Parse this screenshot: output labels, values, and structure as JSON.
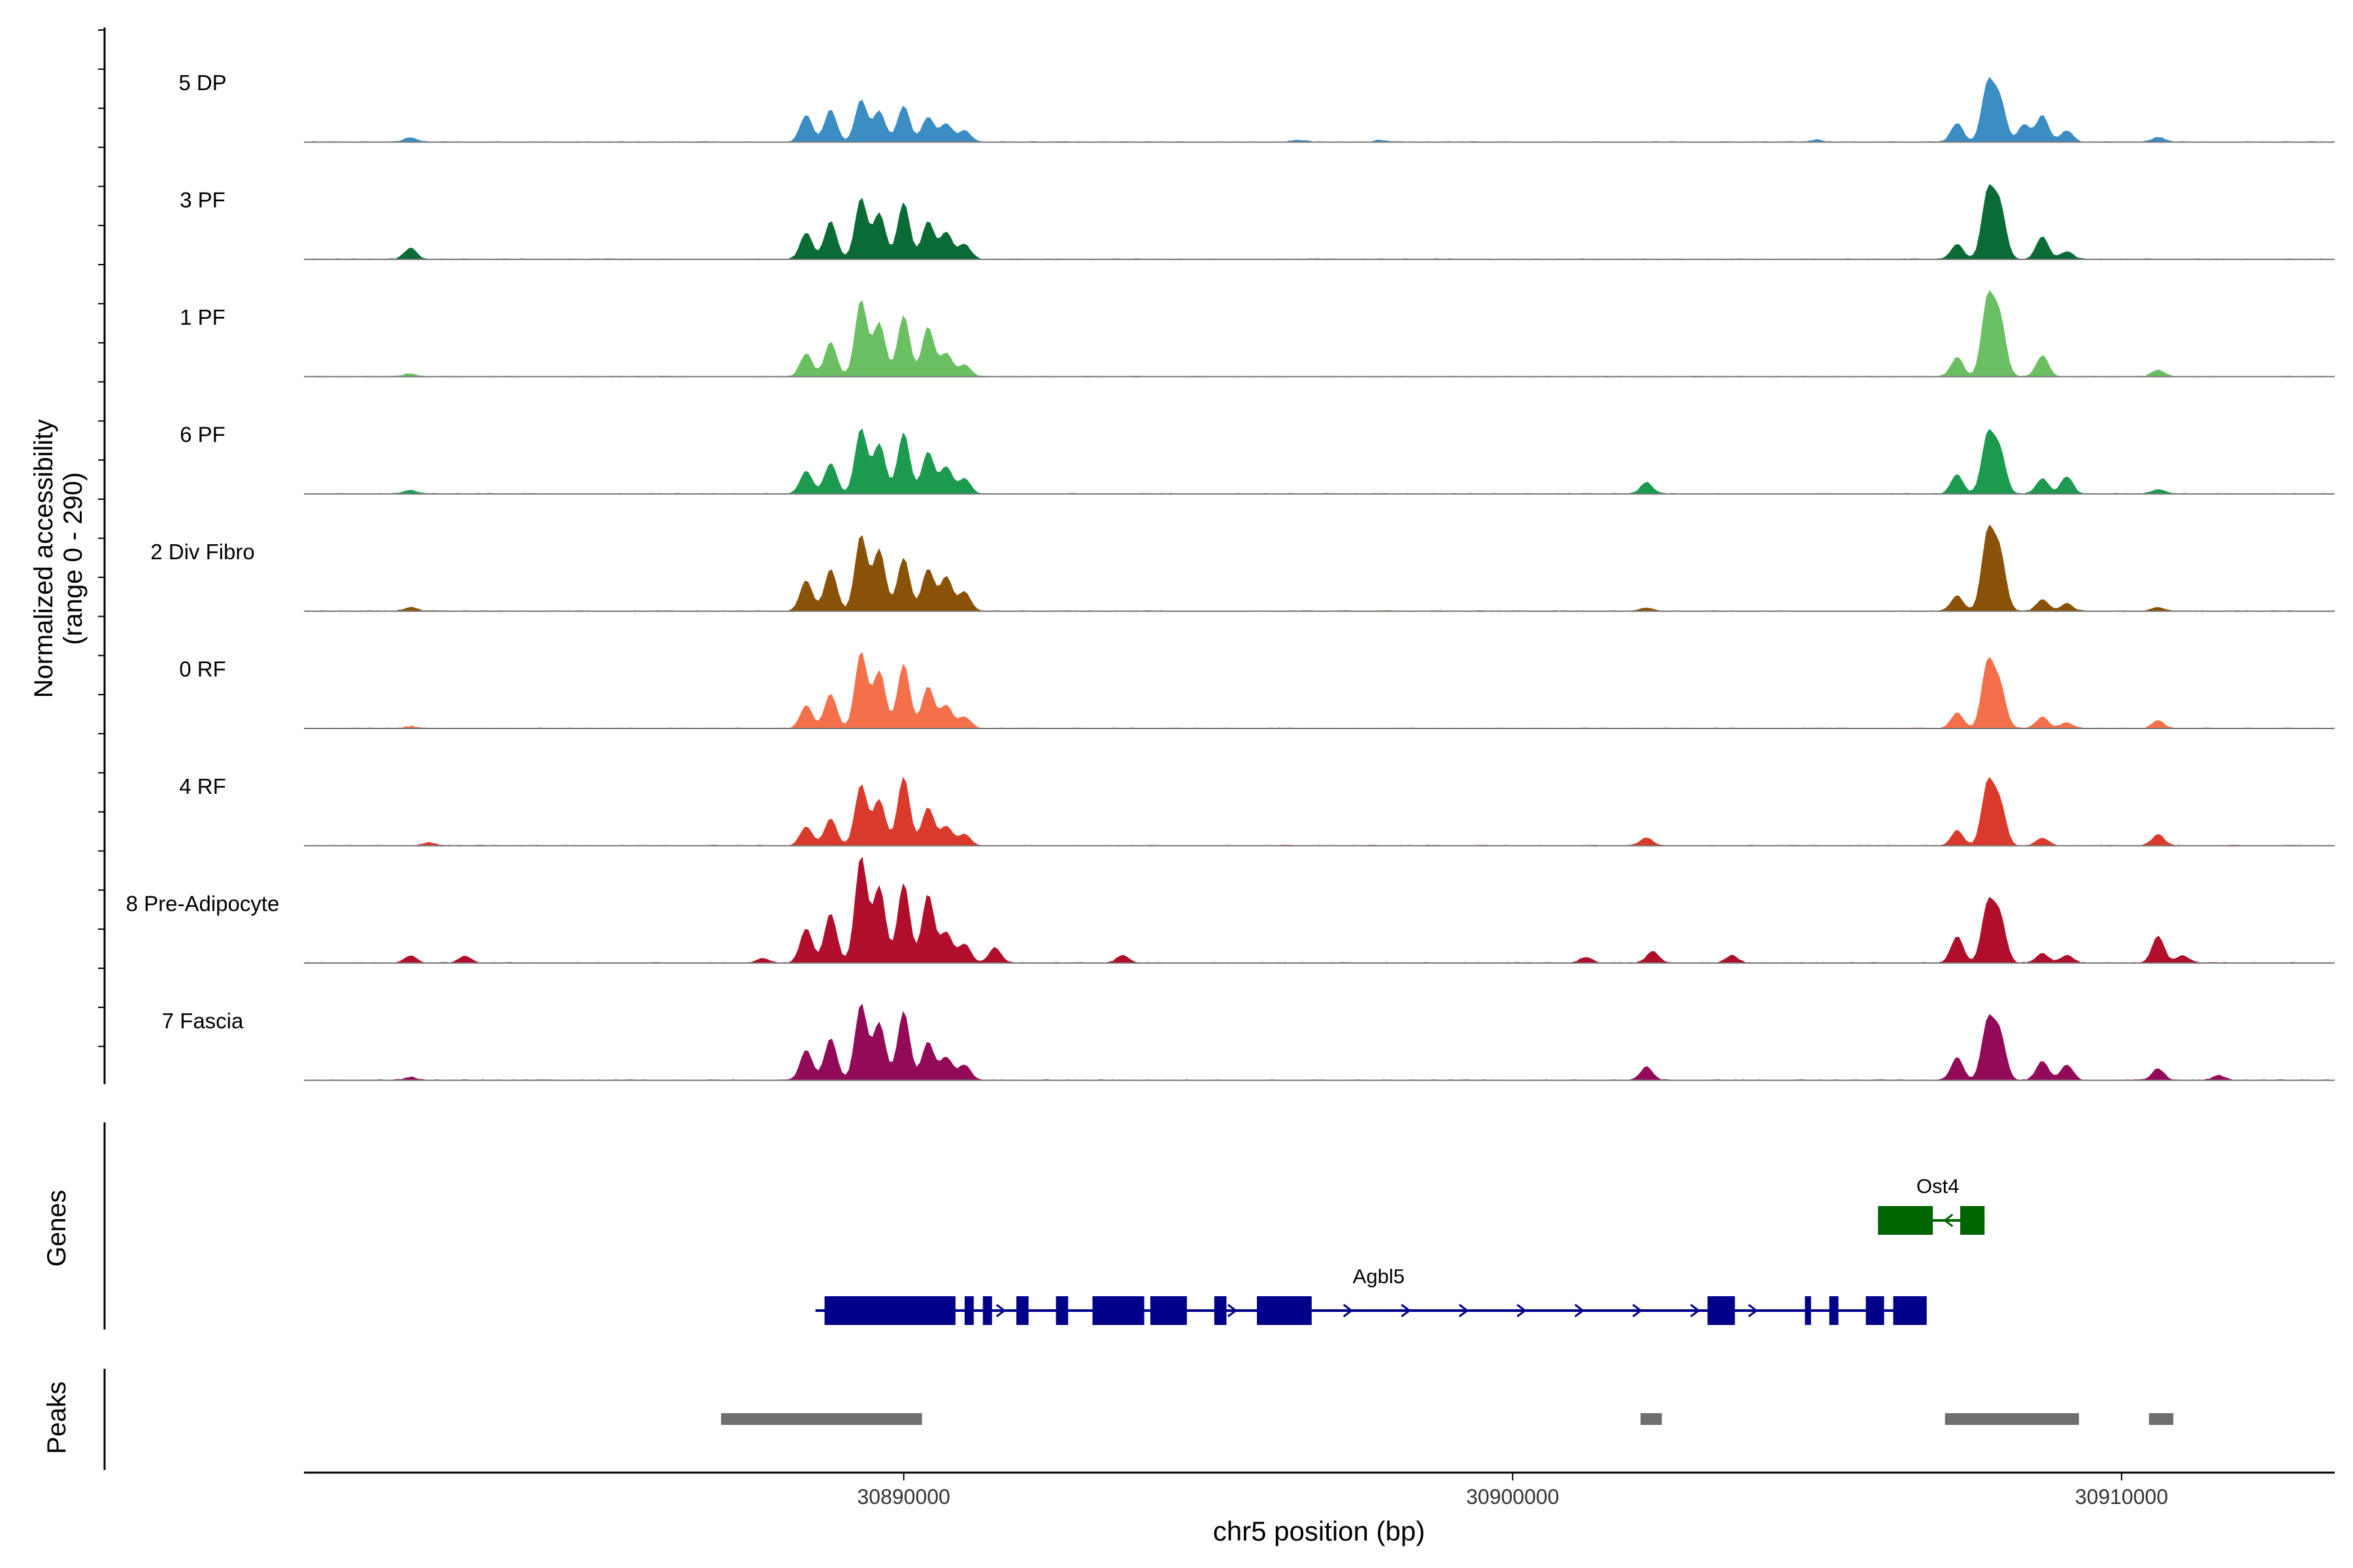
{
  "chart_data": {
    "type": "area",
    "title": "",
    "xlabel": "chr5 position (bp)",
    "ylabel_line1": "Normalized accessibility",
    "ylabel_line2": "(range 0 - 290)",
    "y_range": [
      0,
      290
    ],
    "xlim": [
      30880150,
      30913500
    ],
    "x_ticks": [
      30890000,
      30900000,
      30910000
    ],
    "x_tick_labels": [
      "30890000",
      "30900000",
      "30910000"
    ],
    "track_labels": {
      "genes": "Genes",
      "peaks": "Peaks"
    },
    "tracks": [
      {
        "name": "5 DP",
        "color": "#3C8DC4",
        "peaks": [
          [
            30881900,
            12
          ],
          [
            30888400,
            70
          ],
          [
            30888800,
            85
          ],
          [
            30889300,
            110
          ],
          [
            30889600,
            80
          ],
          [
            30890000,
            95
          ],
          [
            30890400,
            65
          ],
          [
            30890700,
            48
          ],
          [
            30891000,
            30
          ],
          [
            30896500,
            5
          ],
          [
            30897800,
            4
          ],
          [
            30905000,
            6
          ],
          [
            30907300,
            50
          ],
          [
            30907800,
            150
          ],
          [
            30908000,
            110
          ],
          [
            30908400,
            45
          ],
          [
            30908700,
            70
          ],
          [
            30909100,
            30
          ],
          [
            30910600,
            12
          ]
        ]
      },
      {
        "name": "3 PF",
        "color": "#0B6B36",
        "peaks": [
          [
            30881900,
            30
          ],
          [
            30888400,
            70
          ],
          [
            30888800,
            100
          ],
          [
            30889300,
            160
          ],
          [
            30889600,
            120
          ],
          [
            30890000,
            150
          ],
          [
            30890400,
            100
          ],
          [
            30890700,
            70
          ],
          [
            30891000,
            40
          ],
          [
            30907300,
            40
          ],
          [
            30907800,
            170
          ],
          [
            30908000,
            140
          ],
          [
            30908700,
            60
          ],
          [
            30909100,
            20
          ]
        ]
      },
      {
        "name": "1 PF",
        "color": "#6BBF63",
        "peaks": [
          [
            30881900,
            8
          ],
          [
            30888400,
            60
          ],
          [
            30888800,
            90
          ],
          [
            30889300,
            200
          ],
          [
            30889600,
            140
          ],
          [
            30890000,
            160
          ],
          [
            30890400,
            130
          ],
          [
            30890700,
            60
          ],
          [
            30891000,
            30
          ],
          [
            30907300,
            50
          ],
          [
            30907800,
            200
          ],
          [
            30908000,
            150
          ],
          [
            30908700,
            55
          ],
          [
            30910600,
            18
          ]
        ]
      },
      {
        "name": "6 PF",
        "color": "#1C9A50",
        "peaks": [
          [
            30881900,
            10
          ],
          [
            30888400,
            60
          ],
          [
            30888800,
            80
          ],
          [
            30889300,
            170
          ],
          [
            30889600,
            130
          ],
          [
            30890000,
            160
          ],
          [
            30890400,
            110
          ],
          [
            30890700,
            70
          ],
          [
            30891000,
            40
          ],
          [
            30902200,
            30
          ],
          [
            30907300,
            50
          ],
          [
            30907800,
            150
          ],
          [
            30908000,
            110
          ],
          [
            30908700,
            40
          ],
          [
            30909100,
            45
          ],
          [
            30910600,
            12
          ]
        ]
      },
      {
        "name": "2 Div Fibro",
        "color": "#8A5208",
        "peaks": [
          [
            30881900,
            10
          ],
          [
            30888400,
            80
          ],
          [
            30888800,
            110
          ],
          [
            30889300,
            200
          ],
          [
            30889600,
            160
          ],
          [
            30890000,
            140
          ],
          [
            30890400,
            110
          ],
          [
            30890700,
            90
          ],
          [
            30891000,
            50
          ],
          [
            30902200,
            8
          ],
          [
            30907300,
            40
          ],
          [
            30907800,
            200
          ],
          [
            30908000,
            150
          ],
          [
            30908700,
            30
          ],
          [
            30909100,
            20
          ],
          [
            30910600,
            10
          ]
        ]
      },
      {
        "name": "0 RF",
        "color": "#F4704A",
        "peaks": [
          [
            30881900,
            5
          ],
          [
            30888400,
            60
          ],
          [
            30888800,
            90
          ],
          [
            30889300,
            200
          ],
          [
            30889600,
            150
          ],
          [
            30890000,
            170
          ],
          [
            30890400,
            110
          ],
          [
            30890700,
            60
          ],
          [
            30891000,
            30
          ],
          [
            30907300,
            40
          ],
          [
            30907800,
            170
          ],
          [
            30908000,
            110
          ],
          [
            30908700,
            30
          ],
          [
            30909100,
            15
          ],
          [
            30910600,
            20
          ]
        ]
      },
      {
        "name": "4 RF",
        "color": "#D93A2B",
        "peaks": [
          [
            30882200,
            8
          ],
          [
            30888400,
            50
          ],
          [
            30888800,
            70
          ],
          [
            30889300,
            160
          ],
          [
            30889600,
            120
          ],
          [
            30890000,
            180
          ],
          [
            30890400,
            100
          ],
          [
            30890700,
            50
          ],
          [
            30891000,
            30
          ],
          [
            30902200,
            20
          ],
          [
            30907300,
            40
          ],
          [
            30907800,
            160
          ],
          [
            30908000,
            110
          ],
          [
            30908700,
            20
          ],
          [
            30910600,
            30
          ]
        ]
      },
      {
        "name": "8 Pre-Adipocyte",
        "color": "#B00E2A",
        "peaks": [
          [
            30881900,
            18
          ],
          [
            30882800,
            18
          ],
          [
            30887700,
            12
          ],
          [
            30888400,
            90
          ],
          [
            30888800,
            130
          ],
          [
            30889300,
            280
          ],
          [
            30889600,
            200
          ],
          [
            30890000,
            210
          ],
          [
            30890400,
            180
          ],
          [
            30890700,
            80
          ],
          [
            30891000,
            50
          ],
          [
            30891500,
            40
          ],
          [
            30893600,
            20
          ],
          [
            30901200,
            15
          ],
          [
            30902300,
            30
          ],
          [
            30903600,
            20
          ],
          [
            30907300,
            70
          ],
          [
            30907800,
            150
          ],
          [
            30908000,
            120
          ],
          [
            30908700,
            25
          ],
          [
            30909100,
            20
          ],
          [
            30910600,
            70
          ],
          [
            30911000,
            20
          ]
        ]
      },
      {
        "name": "7 Fascia",
        "color": "#930A58",
        "peaks": [
          [
            30881900,
            8
          ],
          [
            30888400,
            80
          ],
          [
            30888800,
            110
          ],
          [
            30889300,
            200
          ],
          [
            30889600,
            150
          ],
          [
            30890000,
            180
          ],
          [
            30890400,
            100
          ],
          [
            30890700,
            60
          ],
          [
            30891000,
            40
          ],
          [
            30902200,
            35
          ],
          [
            30907300,
            60
          ],
          [
            30907800,
            150
          ],
          [
            30908000,
            120
          ],
          [
            30908700,
            50
          ],
          [
            30909100,
            40
          ],
          [
            30910600,
            30
          ],
          [
            30911600,
            12
          ]
        ]
      }
    ],
    "genes": [
      {
        "name": "Ost4",
        "strand": "-",
        "color": "#006400",
        "start": 30906000,
        "end": 30907750,
        "exons": [
          [
            30906000,
            30906900
          ],
          [
            30907350,
            30907750
          ]
        ]
      },
      {
        "name": "Agbl5",
        "strand": "+",
        "color": "#00008B",
        "start": 30888550,
        "end": 30906800,
        "exons": [
          [
            30888700,
            30890850
          ],
          [
            30891000,
            30891150
          ],
          [
            30891300,
            30891450
          ],
          [
            30891850,
            30892050
          ],
          [
            30892500,
            30892700
          ],
          [
            30893100,
            30893950
          ],
          [
            30894050,
            30894650
          ],
          [
            30895100,
            30895300
          ],
          [
            30895800,
            30896700
          ],
          [
            30903200,
            30903650
          ],
          [
            30904800,
            30904900
          ],
          [
            30905200,
            30905350
          ],
          [
            30905800,
            30906100
          ],
          [
            30906250,
            30906800
          ]
        ]
      }
    ],
    "peak_regions": [
      [
        30887000,
        30890300
      ],
      [
        30902100,
        30902450
      ],
      [
        30907100,
        30909300
      ],
      [
        30910450,
        30910850
      ]
    ],
    "peak_color": "#6E6E6E"
  }
}
